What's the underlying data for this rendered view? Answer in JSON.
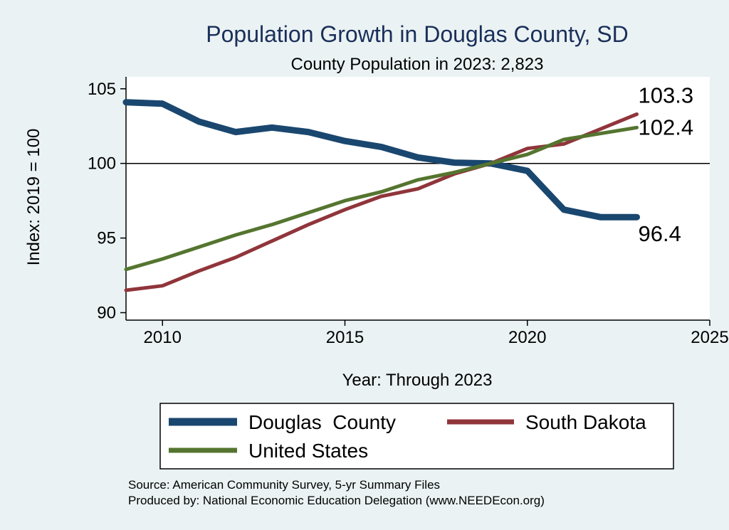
{
  "chart_data": {
    "type": "line",
    "title": "Population Growth in Douglas County, SD",
    "subtitle": "County Population in 2023: 2,823",
    "xlabel": "Year: Through 2023",
    "ylabel": "Index: 2019 = 100",
    "xlim": [
      2009,
      2025
    ],
    "ylim": [
      89.5,
      105.8
    ],
    "xticks": [
      2010,
      2015,
      2020,
      2025
    ],
    "yticks": [
      90,
      95,
      100,
      105
    ],
    "reference_line": 100,
    "grid": false,
    "legend_position": "bottom",
    "x": [
      2009,
      2010,
      2011,
      2012,
      2013,
      2014,
      2015,
      2016,
      2017,
      2018,
      2019,
      2020,
      2021,
      2022,
      2023
    ],
    "series": [
      {
        "name": "Douglas  County",
        "color": "#1a476f",
        "width": 9,
        "values": [
          104.1,
          104.0,
          102.8,
          102.1,
          102.4,
          102.1,
          101.5,
          101.1,
          100.4,
          100.05,
          100.0,
          99.5,
          96.9,
          96.4,
          96.4
        ],
        "end_label": "96.4"
      },
      {
        "name": "South Dakota",
        "color": "#90353b",
        "width": 5,
        "values": [
          91.5,
          91.8,
          92.8,
          93.7,
          94.8,
          95.9,
          96.9,
          97.8,
          98.3,
          99.3,
          100.0,
          101.0,
          101.3,
          102.3,
          103.3
        ],
        "end_label": "103.3"
      },
      {
        "name": "United States",
        "color": "#55752f",
        "width": 5,
        "values": [
          92.9,
          93.6,
          94.4,
          95.2,
          95.9,
          96.7,
          97.5,
          98.1,
          98.9,
          99.4,
          100.0,
          100.6,
          101.6,
          102.0,
          102.4
        ],
        "end_label": "102.4"
      }
    ],
    "source_lines": [
      "Source: American Community Survey, 5-yr Summary Files",
      "Produced by: National Economic Education Delegation (www.NEEDEcon.org)"
    ]
  }
}
